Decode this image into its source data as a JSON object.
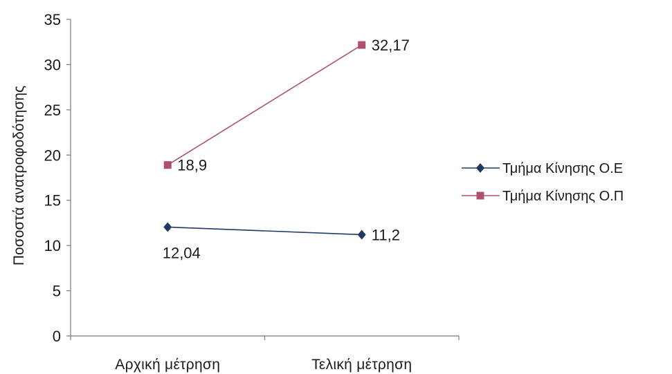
{
  "chart_data": {
    "type": "line",
    "categories": [
      "Αρχική μέτρηση",
      "Τελική μέτρηση"
    ],
    "series": [
      {
        "name": "Τμήμα Κίνησης Ο.Ε",
        "values": [
          12.04,
          11.2
        ],
        "labels": [
          "12,04",
          "11,2"
        ],
        "color": "#1f3864",
        "marker": "diamond"
      },
      {
        "name": "Τμήμα Κίνησης Ο.Π",
        "values": [
          18.9,
          32.17
        ],
        "labels": [
          "18,9",
          "32,17"
        ],
        "color": "#b0506e",
        "marker": "square"
      }
    ],
    "ylabel": "Ποσοστά ανατροφοδότησης",
    "xlabel": "",
    "ylim": [
      0,
      35
    ],
    "yticks": [
      0,
      5,
      10,
      15,
      20,
      25,
      30,
      35
    ],
    "grid": false,
    "legend": "right"
  }
}
